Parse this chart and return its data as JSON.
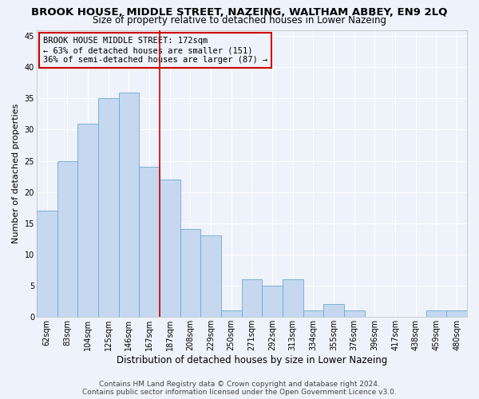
{
  "title": "BROOK HOUSE, MIDDLE STREET, NAZEING, WALTHAM ABBEY, EN9 2LQ",
  "subtitle": "Size of property relative to detached houses in Lower Nazeing",
  "xlabel": "Distribution of detached houses by size in Lower Nazeing",
  "ylabel": "Number of detached properties",
  "categories": [
    "62sqm",
    "83sqm",
    "104sqm",
    "125sqm",
    "146sqm",
    "167sqm",
    "187sqm",
    "208sqm",
    "229sqm",
    "250sqm",
    "271sqm",
    "292sqm",
    "313sqm",
    "334sqm",
    "355sqm",
    "376sqm",
    "396sqm",
    "417sqm",
    "438sqm",
    "459sqm",
    "480sqm"
  ],
  "values": [
    17,
    25,
    31,
    35,
    36,
    24,
    22,
    14,
    13,
    1,
    6,
    5,
    6,
    1,
    2,
    1,
    0,
    0,
    0,
    1,
    1
  ],
  "bar_color": "#c5d8f0",
  "bar_edge_color": "#6aaad4",
  "property_line_x": 5.5,
  "vline_color": "#cc0000",
  "annotation_box_edge": "#cc0000",
  "annotation_line1": "BROOK HOUSE MIDDLE STREET: 172sqm",
  "annotation_line2": "← 63% of detached houses are smaller (151)",
  "annotation_line3": "36% of semi-detached houses are larger (87) →",
  "ylim": [
    0,
    46
  ],
  "yticks": [
    0,
    5,
    10,
    15,
    20,
    25,
    30,
    35,
    40,
    45
  ],
  "footer_line1": "Contains HM Land Registry data © Crown copyright and database right 2024.",
  "footer_line2": "Contains public sector information licensed under the Open Government Licence v3.0.",
  "background_color": "#eef2fa",
  "grid_color": "#ffffff",
  "title_fontsize": 9.5,
  "subtitle_fontsize": 8.5,
  "xlabel_fontsize": 8.5,
  "ylabel_fontsize": 8,
  "tick_fontsize": 7,
  "annotation_fontsize": 7.5,
  "footer_fontsize": 6.5
}
